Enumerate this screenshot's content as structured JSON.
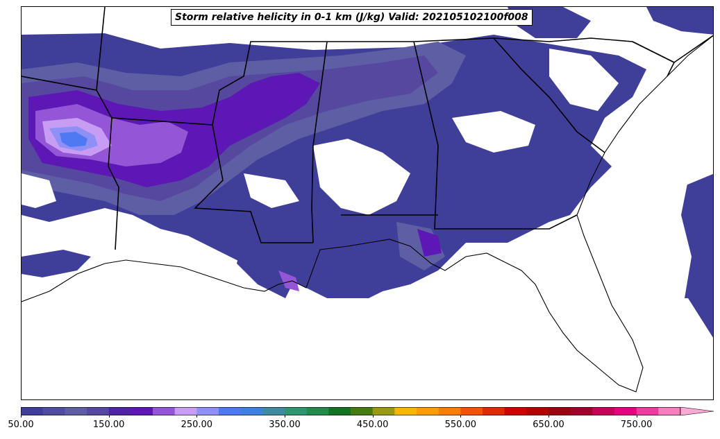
{
  "title": "Storm relative helicity in 0-1 km (J/kg) Valid: 202105102100f008",
  "colorbar": {
    "min": 50,
    "max": 800,
    "step": 25,
    "extend": "max",
    "tick_labels": [
      "50.00",
      "150.00",
      "250.00",
      "350.00",
      "450.00",
      "550.00",
      "650.00",
      "750.00"
    ],
    "tick_values": [
      50,
      150,
      250,
      350,
      450,
      550,
      650,
      750
    ],
    "colors": [
      "#3f3f9a",
      "#4e4d9f",
      "#5e5ea5",
      "#56489f",
      "#4f23a6",
      "#5c17b5",
      "#9456d6",
      "#c69df2",
      "#8f8ff5",
      "#4f79f2",
      "#3f80e0",
      "#3f8aa0",
      "#2f9470",
      "#238a4c",
      "#147322",
      "#477a13",
      "#9a9a12",
      "#f5b800",
      "#fa9e00",
      "#fa7d00",
      "#f55200",
      "#e02b00",
      "#d10000",
      "#b50000",
      "#9c0010",
      "#a3002d",
      "#c9005a",
      "#e6007f",
      "#ef3a9e",
      "#f77fbf"
    ],
    "extend_color": "#fbaad6"
  },
  "map": {
    "field": "0-1 km storm relative helicity",
    "units": "J/kg",
    "region": "Southeastern United States",
    "valid_time": "202105102100",
    "forecast_hour": "f008"
  }
}
